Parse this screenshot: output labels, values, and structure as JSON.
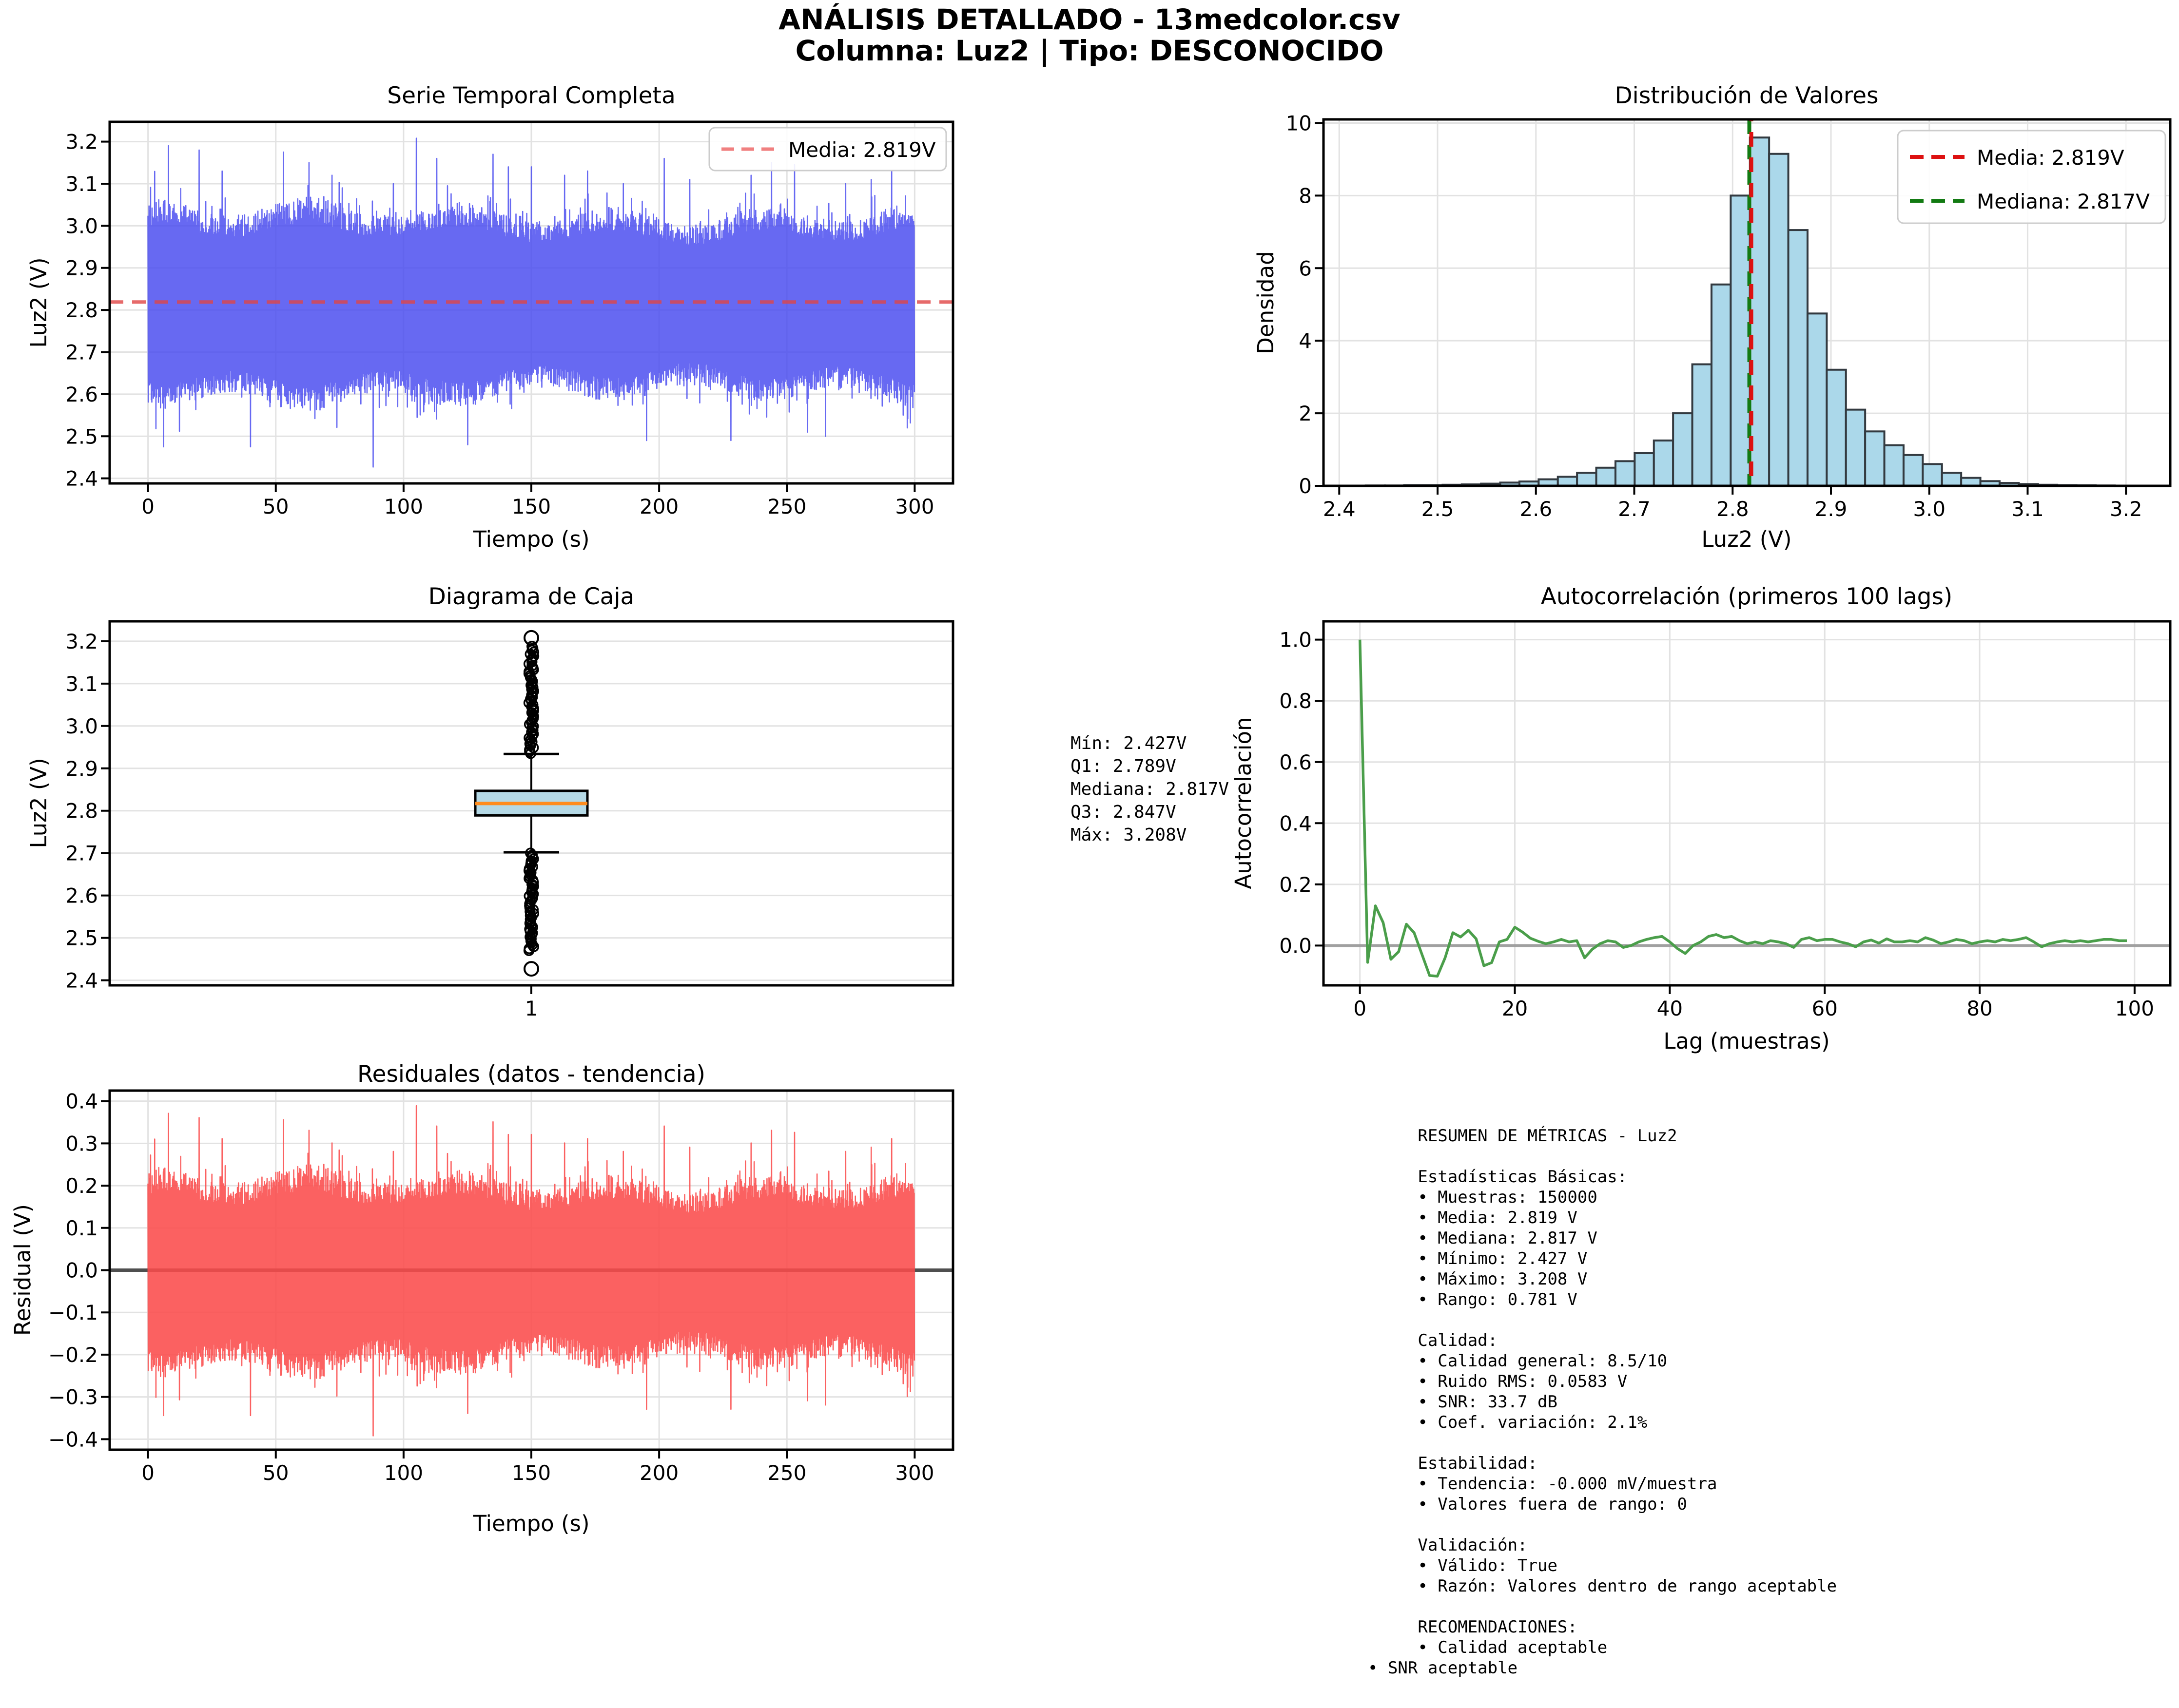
{
  "header": {
    "line1": "ANÁLISIS DETALLADO - 13medcolor.csv",
    "line2": "Columna: Luz2 | Tipo: DESCONOCIDO"
  },
  "stats_box": {
    "text": "Mín: 2.427V\nQ1: 2.789V\nMediana: 2.817V\nQ3: 2.847V\nMáx: 3.208V"
  },
  "metrics_box": {
    "text": "     RESUMEN DE MÉTRICAS - Luz2\n\n     Estadísticas Básicas:\n     • Muestras: 150000\n     • Media: 2.819 V\n     • Mediana: 2.817 V\n     • Mínimo: 2.427 V\n     • Máximo: 3.208 V\n     • Rango: 0.781 V\n\n     Calidad:\n     • Calidad general: 8.5/10\n     • Ruido RMS: 0.0583 V\n     • SNR: 33.7 dB\n     • Coef. variación: 2.1%\n\n     Estabilidad:\n     • Tendencia: -0.000 mV/muestra\n     • Valores fuera de rango: 0\n\n     Validación:\n     • Válido: True\n     • Razón: Valores dentro de rango aceptable\n\n     RECOMENDACIONES:\n     • Calidad aceptable\n• SNR aceptable"
  },
  "colors": {
    "series_blue": "#4648ef",
    "mean_red_soft": "#e04545",
    "mean_red": "#dd1111",
    "median_green": "#127a12",
    "hist_fill": "#abd8ea",
    "hist_edge": "#333a40",
    "box_fill": "#b5d9e6",
    "box_median_orange": "#ff8c1e",
    "acf_green": "#4a9e4a",
    "resid_red": "#fb4b4b",
    "zero_gray": "#999999",
    "zero_dark": "#4f4f4f",
    "grid": "#e2e2e2"
  },
  "chart_data": [
    {
      "id": "timeseries",
      "type": "line",
      "title": "Serie Temporal Completa",
      "xlabel": "Tiempo (s)",
      "ylabel": "Luz2 (V)",
      "xlim": [
        -15,
        315
      ],
      "ylim": [
        2.388,
        3.247
      ],
      "xticks": [
        0,
        50,
        100,
        150,
        200,
        250,
        300
      ],
      "yticks": [
        2.4,
        2.5,
        2.6,
        2.7,
        2.8,
        2.9,
        3.0,
        3.1,
        3.2
      ],
      "x_decimals": 0,
      "y_decimals": 1,
      "grid": "both",
      "mean": 2.819,
      "band_core": [
        2.6,
        3.05
      ],
      "legend": [
        {
          "label": "Media: 2.819V",
          "dash": true
        }
      ],
      "extremes": [
        [
          6,
          2.475
        ],
        [
          8,
          3.19
        ],
        [
          20,
          3.18
        ],
        [
          29,
          3.13
        ],
        [
          40,
          2.475
        ],
        [
          53,
          3.175
        ],
        [
          63,
          3.15
        ],
        [
          72,
          3.12
        ],
        [
          88,
          2.427
        ],
        [
          96,
          3.1
        ],
        [
          105,
          3.208
        ],
        [
          113,
          3.16
        ],
        [
          125,
          2.48
        ],
        [
          135,
          3.17
        ],
        [
          141,
          3.14
        ],
        [
          150,
          3.14
        ],
        [
          163,
          3.12
        ],
        [
          172,
          3.13
        ],
        [
          186,
          3.1
        ],
        [
          195,
          2.49
        ],
        [
          202,
          3.16
        ],
        [
          212,
          3.11
        ],
        [
          228,
          2.49
        ],
        [
          236,
          3.12
        ],
        [
          244,
          3.15
        ],
        [
          253,
          3.145
        ],
        [
          258,
          2.51
        ],
        [
          265,
          2.5
        ],
        [
          273,
          3.1
        ],
        [
          283,
          3.11
        ],
        [
          291,
          3.13
        ],
        [
          297,
          2.52
        ]
      ]
    },
    {
      "id": "histogram",
      "type": "bar",
      "title": "Distribución de Valores",
      "xlabel": "Luz2 (V)",
      "ylabel": "Densidad",
      "xlim": [
        2.384,
        3.245
      ],
      "ylim": [
        0,
        10.1
      ],
      "xticks": [
        2.4,
        2.5,
        2.6,
        2.7,
        2.8,
        2.9,
        3.0,
        3.1,
        3.2
      ],
      "yticks": [
        0,
        2,
        4,
        6,
        8,
        10
      ],
      "x_decimals": 1,
      "y_decimals": 0,
      "grid": "both",
      "bin_start": 2.427,
      "bin_width": 0.01953,
      "densities": [
        0.01,
        0.01,
        0.02,
        0.02,
        0.03,
        0.04,
        0.06,
        0.09,
        0.12,
        0.18,
        0.25,
        0.36,
        0.5,
        0.68,
        0.9,
        1.25,
        2.0,
        3.35,
        5.55,
        8.0,
        9.6,
        9.15,
        7.05,
        4.75,
        3.2,
        2.1,
        1.5,
        1.12,
        0.85,
        0.6,
        0.36,
        0.22,
        0.13,
        0.08,
        0.05,
        0.03,
        0.02,
        0.015,
        0.01,
        0.005
      ],
      "mean": 2.819,
      "median": 2.817,
      "legend": [
        {
          "label": "Media: 2.819V",
          "dash": true
        },
        {
          "label": "Mediana: 2.817V",
          "dash": true
        }
      ]
    },
    {
      "id": "boxplot",
      "type": "box",
      "title": "Diagrama de Caja",
      "ylabel": "Luz2 (V)",
      "xtick_label": "1",
      "ylim": [
        2.388,
        3.247
      ],
      "yticks": [
        2.4,
        2.5,
        2.6,
        2.7,
        2.8,
        2.9,
        3.0,
        3.1,
        3.2
      ],
      "y_decimals": 1,
      "grid": "y",
      "stats": {
        "min": 2.427,
        "q1": 2.789,
        "median": 2.817,
        "q3": 2.847,
        "max": 3.208,
        "whisker_low": 2.702,
        "whisker_high": 2.934
      },
      "outlier_ranges": [
        {
          "from": 2.47,
          "to": 2.701
        },
        {
          "from": 2.935,
          "to": 3.19
        }
      ],
      "extreme_outliers": [
        2.427,
        3.208
      ]
    },
    {
      "id": "autocorrelation",
      "type": "line",
      "title": "Autocorrelación (primeros 100 lags)",
      "xlabel": "Lag (muestras)",
      "ylabel": "Autocorrelación",
      "xlim": [
        -4.7,
        104.6
      ],
      "ylim": [
        -0.13,
        1.06
      ],
      "xticks": [
        0,
        20,
        40,
        60,
        80,
        100
      ],
      "yticks": [
        0.0,
        0.2,
        0.4,
        0.6,
        0.8,
        1.0
      ],
      "x_decimals": 0,
      "y_decimals": 1,
      "grid": "both",
      "zero_line": 0,
      "values": [
        1.0,
        -0.055,
        0.13,
        0.075,
        -0.045,
        -0.02,
        0.07,
        0.042,
        -0.028,
        -0.098,
        -0.1,
        -0.04,
        0.042,
        0.028,
        0.05,
        0.022,
        -0.066,
        -0.056,
        0.012,
        0.02,
        0.06,
        0.044,
        0.024,
        0.014,
        0.006,
        0.012,
        0.02,
        0.012,
        0.016,
        -0.04,
        -0.012,
        0.006,
        0.016,
        0.012,
        -0.006,
        0.0,
        0.012,
        0.02,
        0.026,
        0.03,
        0.012,
        -0.01,
        -0.026,
        0.0,
        0.012,
        0.03,
        0.036,
        0.026,
        0.03,
        0.016,
        0.006,
        0.012,
        0.006,
        0.016,
        0.012,
        0.006,
        -0.006,
        0.02,
        0.026,
        0.016,
        0.02,
        0.02,
        0.012,
        0.006,
        -0.004,
        0.012,
        0.018,
        0.008,
        0.022,
        0.012,
        0.012,
        0.016,
        0.012,
        0.026,
        0.018,
        0.006,
        0.012,
        0.02,
        0.016,
        0.006,
        0.012,
        0.016,
        0.012,
        0.02,
        0.016,
        0.02,
        0.026,
        0.012,
        -0.004,
        0.006,
        0.012,
        0.016,
        0.012,
        0.016,
        0.012,
        0.016,
        0.02,
        0.02,
        0.016,
        0.016
      ]
    },
    {
      "id": "residuals",
      "type": "line",
      "title": "Residuales (datos - tendencia)",
      "xlabel": "Tiempo (s)",
      "ylabel": "Residual (V)",
      "xlim": [
        -15,
        315
      ],
      "ylim": [
        -0.425,
        0.425
      ],
      "xticks": [
        0,
        50,
        100,
        150,
        200,
        250,
        300
      ],
      "yticks": [
        -0.4,
        -0.3,
        -0.2,
        -0.1,
        0.0,
        0.1,
        0.2,
        0.3,
        0.4
      ],
      "x_decimals": 0,
      "y_decimals": 1,
      "grid": "both",
      "mean": 0,
      "zero_line": 0,
      "band_core": [
        -0.21,
        0.21
      ]
    }
  ]
}
